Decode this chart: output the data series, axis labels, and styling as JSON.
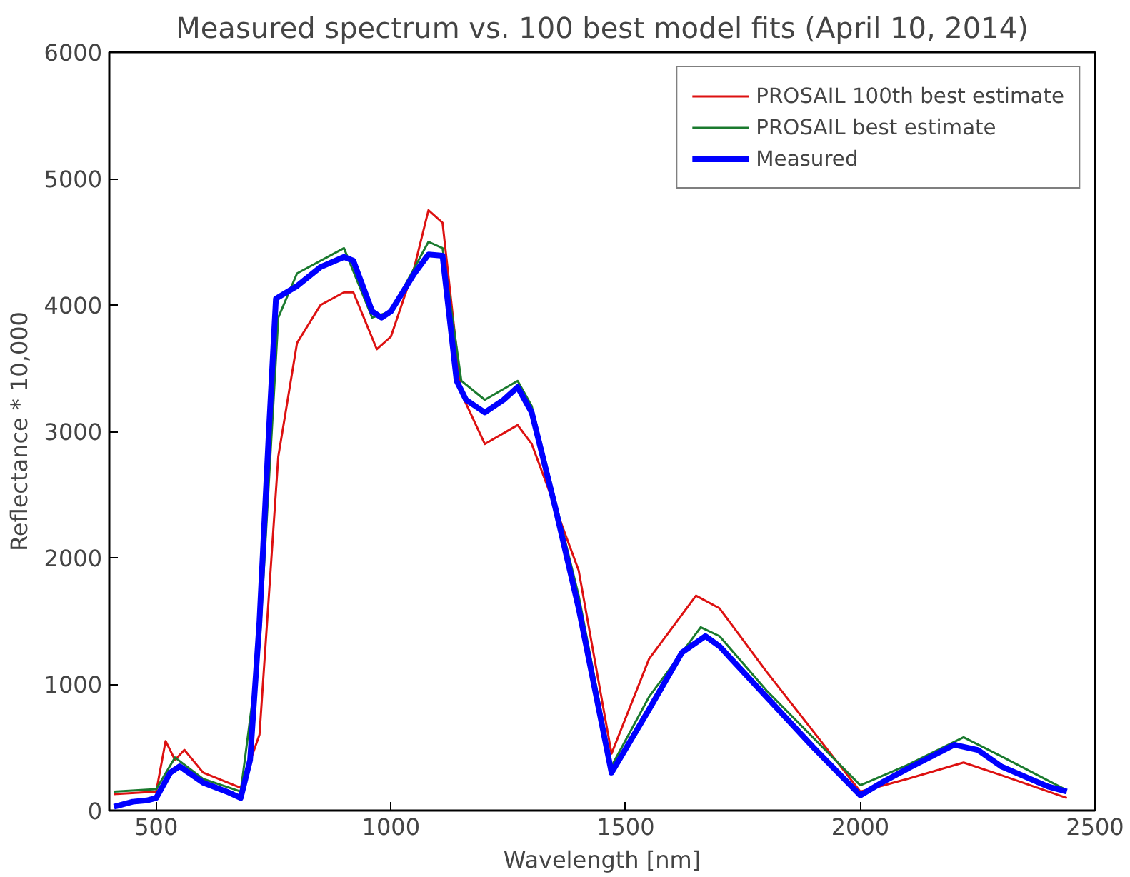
{
  "chart_data": {
    "type": "line",
    "title": "Measured spectrum vs. 100 best model fits (April 10, 2014)",
    "xlabel": "Wavelength [nm]",
    "ylabel": "Reflectance * 10,000",
    "xlim": [
      400,
      2500
    ],
    "ylim": [
      0,
      6000
    ],
    "xticks": [
      500,
      1000,
      1500,
      2000,
      2500
    ],
    "yticks": [
      0,
      1000,
      2000,
      3000,
      4000,
      5000,
      6000
    ],
    "grid": false,
    "legend": "top right",
    "series": [
      {
        "name": "PROSAIL 100th best estimate",
        "color": "#dd1111",
        "x": [
          410,
          500,
          520,
          540,
          560,
          600,
          680,
          720,
          760,
          800,
          850,
          900,
          920,
          970,
          1000,
          1050,
          1080,
          1110,
          1150,
          1200,
          1270,
          1300,
          1400,
          1470,
          1550,
          1650,
          1700,
          1800,
          2000,
          2100,
          2220,
          2300,
          2440
        ],
        "values": [
          130,
          150,
          550,
          400,
          480,
          300,
          180,
          600,
          2800,
          3700,
          4000,
          4100,
          4100,
          3650,
          3750,
          4300,
          4750,
          4650,
          3300,
          2900,
          3050,
          2900,
          1900,
          450,
          1200,
          1700,
          1600,
          1100,
          150,
          250,
          380,
          280,
          100
        ]
      },
      {
        "name": "PROSAIL best estimate",
        "color": "#1a7a2e",
        "x": [
          410,
          500,
          540,
          600,
          680,
          720,
          760,
          800,
          900,
          960,
          1000,
          1080,
          1110,
          1150,
          1200,
          1270,
          1300,
          1400,
          1470,
          1550,
          1660,
          1700,
          1800,
          2000,
          2100,
          2220,
          2300,
          2440
        ],
        "values": [
          150,
          170,
          420,
          250,
          150,
          1300,
          3900,
          4250,
          4450,
          3900,
          3950,
          4500,
          4450,
          3400,
          3250,
          3400,
          3200,
          1700,
          350,
          900,
          1450,
          1380,
          950,
          200,
          360,
          580,
          430,
          160
        ]
      },
      {
        "name": "Measured",
        "color": "#0000ff",
        "x": [
          410,
          450,
          480,
          500,
          530,
          550,
          600,
          650,
          680,
          700,
          720,
          740,
          755,
          800,
          850,
          900,
          920,
          960,
          980,
          1000,
          1050,
          1080,
          1110,
          1140,
          1160,
          1200,
          1240,
          1270,
          1300,
          1350,
          1400,
          1470,
          1550,
          1620,
          1670,
          1700,
          1800,
          1900,
          2000,
          2050,
          2100,
          2200,
          2250,
          2300,
          2400,
          2440
        ],
        "values": [
          30,
          70,
          80,
          100,
          300,
          350,
          220,
          150,
          100,
          400,
          1500,
          3000,
          4050,
          4150,
          4300,
          4380,
          4350,
          3950,
          3900,
          3950,
          4250,
          4400,
          4390,
          3400,
          3250,
          3150,
          3250,
          3350,
          3150,
          2400,
          1600,
          300,
          800,
          1250,
          1380,
          1300,
          900,
          500,
          120,
          230,
          330,
          520,
          480,
          350,
          190,
          150
        ]
      }
    ]
  }
}
